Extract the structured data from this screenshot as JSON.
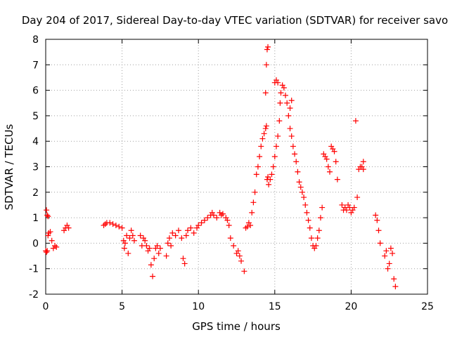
{
  "chart_data": {
    "type": "scatter",
    "title": "Day 204 of 2017, Sidereal Day-to-day VTEC variation (SDTVAR) for receiver savo",
    "xlabel": "GPS time / hours",
    "ylabel": "SDTVAR / TECUs",
    "xlim": [
      0,
      25
    ],
    "ylim": [
      -2,
      8
    ],
    "xticks": [
      "0",
      "5",
      "10",
      "15",
      "20",
      "25"
    ],
    "yticks": [
      "-2",
      "-1",
      "0",
      "1",
      "2",
      "3",
      "4",
      "5",
      "6",
      "7",
      "8"
    ],
    "grid": true,
    "marker": "plus",
    "series": [
      {
        "name": "SDTVAR",
        "color": "#ff0000",
        "x": [
          0.0,
          0.05,
          0.1,
          0.15,
          0.2,
          0.3,
          0.4,
          0.5,
          0.6,
          0.7,
          0.05,
          0.1,
          0.15,
          1.2,
          1.3,
          1.4,
          1.5,
          3.8,
          3.9,
          4.0,
          4.2,
          4.4,
          4.6,
          4.8,
          5.0,
          5.1,
          5.15,
          5.2,
          5.3,
          5.4,
          5.5,
          5.6,
          5.7,
          5.8,
          6.2,
          6.3,
          6.4,
          6.5,
          6.6,
          6.7,
          6.8,
          6.9,
          7.0,
          7.1,
          7.2,
          7.3,
          7.4,
          7.5,
          7.9,
          8.0,
          8.1,
          8.2,
          8.3,
          8.5,
          8.7,
          8.9,
          9.0,
          9.1,
          9.2,
          9.3,
          9.5,
          9.7,
          9.9,
          10.0,
          10.2,
          10.4,
          10.6,
          10.8,
          10.9,
          11.0,
          11.2,
          11.4,
          11.5,
          11.6,
          11.8,
          11.9,
          12.0,
          12.1,
          12.3,
          12.5,
          12.6,
          12.7,
          12.8,
          13.0,
          13.1,
          13.2,
          13.3,
          13.4,
          13.5,
          13.6,
          13.7,
          13.8,
          13.9,
          14.0,
          14.1,
          14.2,
          14.3,
          14.4,
          14.45,
          14.5,
          14.55,
          14.6,
          14.7,
          14.8,
          14.9,
          15.0,
          15.1,
          15.2,
          15.3,
          15.35,
          15.4,
          15.5,
          15.6,
          15.7,
          15.8,
          15.9,
          16.0,
          16.1,
          16.2,
          16.3,
          16.4,
          16.5,
          16.6,
          16.7,
          16.8,
          16.9,
          17.0,
          17.1,
          17.2,
          17.3,
          17.4,
          17.5,
          17.6,
          17.7,
          17.8,
          17.9,
          18.0,
          18.1,
          18.2,
          18.3,
          18.4,
          18.5,
          18.6,
          18.7,
          18.8,
          18.9,
          19.0,
          19.1,
          19.4,
          19.5,
          19.6,
          19.7,
          19.8,
          19.9,
          20.0,
          20.1,
          20.2,
          20.4,
          20.5,
          20.6,
          20.7,
          20.8,
          21.6,
          21.7,
          21.8,
          21.9,
          22.2,
          22.3,
          22.4,
          22.5,
          22.6,
          22.7,
          22.8,
          22.9,
          14.4,
          14.45,
          14.5,
          14.55,
          15.0,
          15.1,
          15.2,
          20.3,
          20.8,
          16.0,
          16.1
        ],
        "y": [
          -0.3,
          -0.35,
          -0.3,
          0.3,
          0.4,
          0.45,
          0.1,
          -0.2,
          -0.1,
          -0.15,
          1.3,
          1.1,
          1.05,
          0.5,
          0.6,
          0.7,
          0.6,
          0.7,
          0.75,
          0.8,
          0.8,
          0.75,
          0.7,
          0.65,
          0.6,
          0.1,
          -0.2,
          0.0,
          0.3,
          -0.4,
          0.2,
          0.5,
          0.3,
          0.1,
          0.3,
          -0.1,
          0.2,
          0.1,
          -0.1,
          -0.3,
          -0.2,
          -0.85,
          -1.3,
          -0.6,
          -0.2,
          -0.1,
          -0.4,
          -0.2,
          -0.5,
          0.0,
          0.2,
          -0.1,
          0.4,
          0.3,
          0.5,
          0.2,
          -0.6,
          -0.8,
          0.3,
          0.5,
          0.6,
          0.4,
          0.6,
          0.7,
          0.8,
          0.9,
          1.0,
          1.1,
          1.2,
          1.1,
          1.0,
          1.2,
          1.1,
          1.15,
          1.0,
          0.9,
          0.7,
          0.2,
          -0.1,
          -0.4,
          -0.3,
          -0.5,
          -0.7,
          -1.1,
          0.6,
          0.65,
          0.8,
          0.7,
          1.2,
          1.6,
          2.0,
          2.7,
          3.0,
          3.4,
          3.8,
          4.1,
          4.3,
          4.5,
          4.6,
          2.5,
          2.6,
          2.3,
          2.5,
          2.7,
          3.0,
          3.4,
          3.8,
          4.2,
          4.8,
          5.5,
          5.9,
          6.2,
          6.1,
          5.8,
          5.5,
          5.0,
          4.5,
          4.2,
          3.8,
          3.5,
          3.2,
          2.8,
          2.4,
          2.2,
          2.0,
          1.8,
          1.5,
          1.2,
          0.9,
          0.6,
          0.2,
          -0.1,
          -0.2,
          -0.1,
          0.2,
          0.5,
          1.0,
          1.4,
          3.5,
          3.4,
          3.3,
          3.0,
          2.8,
          3.8,
          3.7,
          3.6,
          3.2,
          2.5,
          1.5,
          1.3,
          1.4,
          1.3,
          1.5,
          1.4,
          1.2,
          1.3,
          1.4,
          1.8,
          2.9,
          3.0,
          3.0,
          2.9,
          1.1,
          0.9,
          0.5,
          0.0,
          -0.5,
          -0.3,
          -1.0,
          -0.8,
          -0.2,
          -0.4,
          -1.4,
          -1.7,
          5.9,
          7.0,
          7.6,
          7.7,
          6.3,
          6.4,
          6.3,
          4.8,
          3.2,
          5.3,
          5.6
        ]
      }
    ]
  }
}
